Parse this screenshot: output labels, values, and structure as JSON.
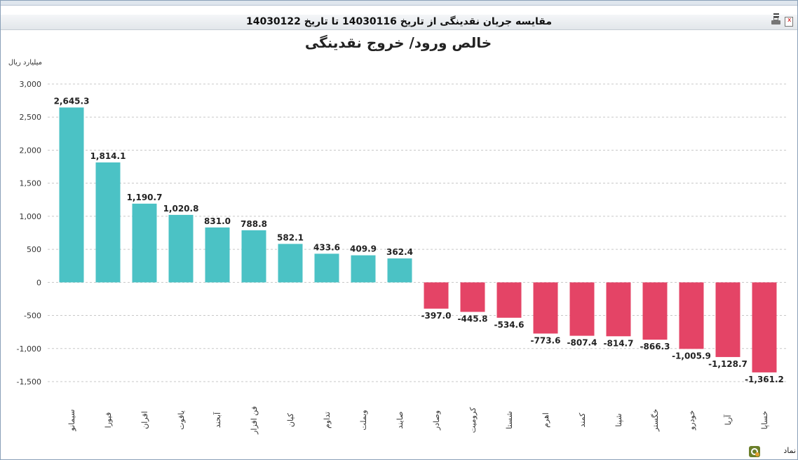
{
  "window": {
    "title": "مقایسه جریان نقدینگی از تاریخ 14030116 تا تاریخ 14030122"
  },
  "legend": {
    "label": "نماد"
  },
  "icons": {
    "minimize": "minimize-icon",
    "print": "print-icon",
    "export": "export-icon",
    "logo": "logo-icon"
  },
  "colors": {
    "positive": "#4bc2c5",
    "negative": "#e44466",
    "grid": "#c8c8c8",
    "axis": "#333333"
  },
  "chart_data": {
    "type": "bar",
    "title": "خالص ورود/ خروج نقدینگی",
    "ylabel": "میلیارد ریال",
    "xlabel": "",
    "ylim": [
      -1500,
      3000
    ],
    "yticks": [
      3000,
      2500,
      2000,
      1500,
      1000,
      500,
      0,
      -500,
      -1000,
      -1500
    ],
    "ytick_labels": [
      "3,000",
      "2,500",
      "2,000",
      "1,500",
      "1,000",
      "500",
      "0",
      "-500",
      "-1,000",
      "-1,500"
    ],
    "grid": true,
    "categories": [
      "سیمانو",
      "فیورا",
      "افران",
      "یاقوت",
      "آبحند",
      "فن افزار",
      "کیان",
      "تداوم",
      "وبملت",
      "صایند",
      "وصادر",
      "کرومیت",
      "شستا",
      "اهرم",
      "کمند",
      "شپنا",
      "خگستر",
      "خودرو",
      "آریا",
      "خساپا"
    ],
    "values": [
      2645.3,
      1814.1,
      1190.7,
      1020.8,
      831.0,
      788.8,
      582.1,
      433.6,
      409.9,
      362.4,
      -397.0,
      -445.8,
      -534.6,
      -773.6,
      -807.4,
      -814.7,
      -866.3,
      -1005.9,
      -1128.7,
      -1361.2
    ],
    "value_labels": [
      "2,645.3",
      "1,814.1",
      "1,190.7",
      "1,020.8",
      "831.0",
      "788.8",
      "582.1",
      "433.6",
      "409.9",
      "362.4",
      "-397.0",
      "-445.8",
      "-534.6",
      "-773.6",
      "-807.4",
      "-814.7",
      "-866.3",
      "-1,005.9",
      "-1,128.7",
      "-1,361.2"
    ]
  }
}
